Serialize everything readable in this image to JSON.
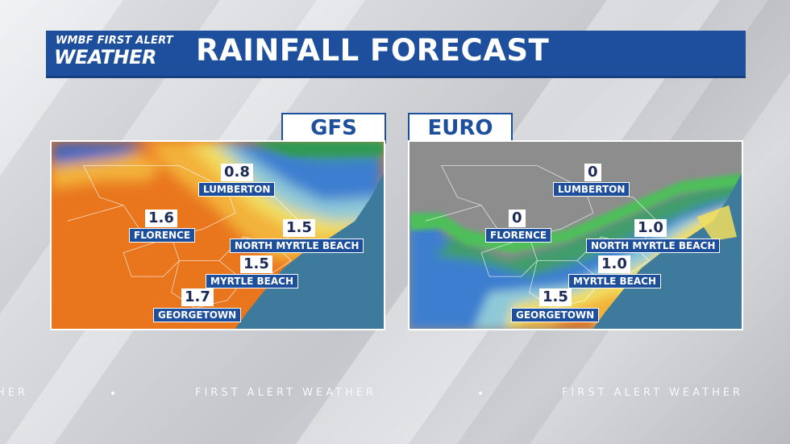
{
  "header": {
    "logo_top": "WMBF FIRST ALERT",
    "logo_bottom": "WEATHER",
    "title": "RAINFALL FORECAST"
  },
  "models": [
    {
      "tab": "GFS",
      "labels": [
        {
          "value": "0.8",
          "city": "LUMBERTON"
        },
        {
          "value": "1.6",
          "city": "FLORENCE"
        },
        {
          "value": "1.5",
          "city": "NORTH MYRTLE BEACH"
        },
        {
          "value": "1.5",
          "city": "MYRTLE BEACH"
        },
        {
          "value": "1.7",
          "city": "GEORGETOWN"
        }
      ]
    },
    {
      "tab": "EURO",
      "labels": [
        {
          "value": "0",
          "city": "LUMBERTON"
        },
        {
          "value": "0",
          "city": "FLORENCE"
        },
        {
          "value": "1.0",
          "city": "NORTH MYRTLE BEACH"
        },
        {
          "value": "1.0",
          "city": "MYRTLE BEACH"
        },
        {
          "value": "1.5",
          "city": "GEORGETOWN"
        }
      ]
    }
  ],
  "footer": {
    "ticker_left": "HER",
    "ticker_mid": "FIRST ALERT WEATHER",
    "ticker_right": "FIRST ALERT WEATHER"
  },
  "colors": {
    "brand_blue": "#1d4f9c",
    "ocean": "#3e7a9b"
  }
}
